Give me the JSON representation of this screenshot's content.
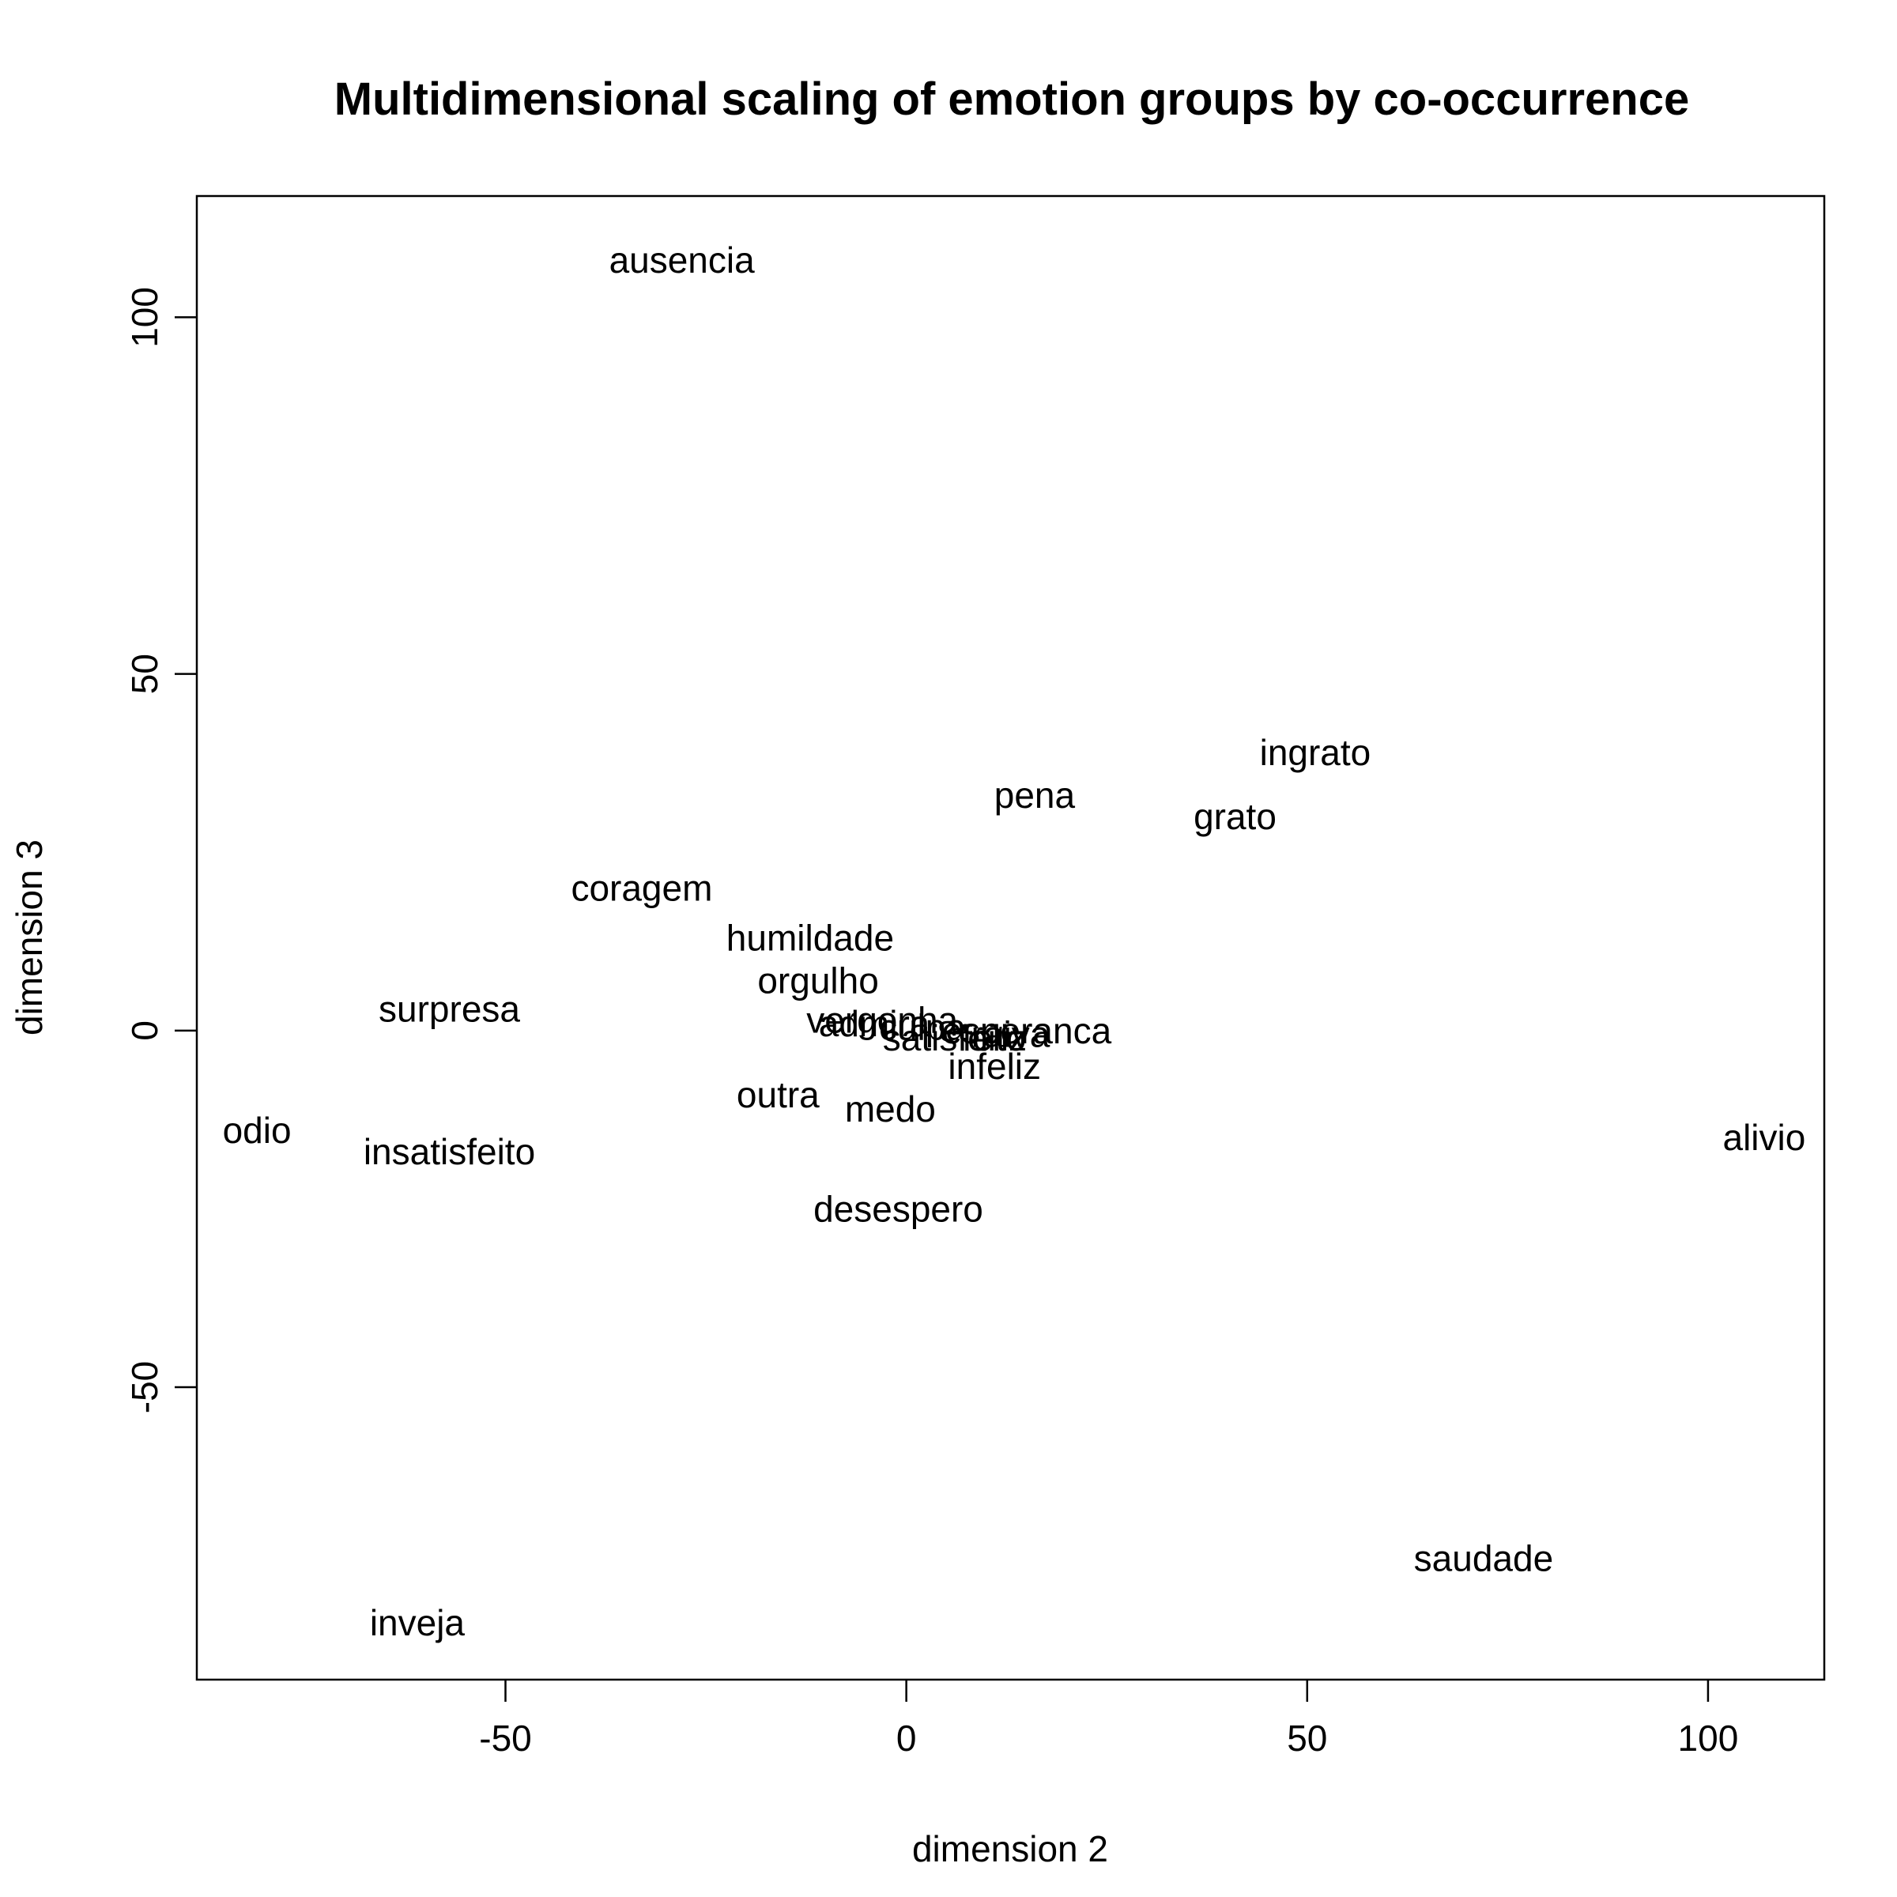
{
  "chart_data": {
    "type": "scatter",
    "title": "Multidimensional scaling of emotion groups by co-occurrence",
    "xlabel": "dimension 2",
    "ylabel": "dimension 3",
    "xlim": [
      -88.5,
      114.5
    ],
    "ylim": [
      -91,
      117
    ],
    "xticks": [
      -50,
      0,
      50,
      100
    ],
    "yticks": [
      -50,
      0,
      50,
      100
    ],
    "tick_labels_x": [
      "-50",
      "0",
      "50",
      "100"
    ],
    "tick_labels_y": [
      "-50",
      "0",
      "50",
      "100"
    ],
    "grid": false,
    "points": [
      {
        "label": "ausencia",
        "x": -28,
        "y": 108
      },
      {
        "label": "ingrato",
        "x": 51,
        "y": 39
      },
      {
        "label": "pena",
        "x": 16,
        "y": 33
      },
      {
        "label": "grato",
        "x": 41,
        "y": 30
      },
      {
        "label": "coragem",
        "x": -33,
        "y": 20
      },
      {
        "label": "humildade",
        "x": -12,
        "y": 13
      },
      {
        "label": "orgulho",
        "x": -11,
        "y": 7
      },
      {
        "label": "surpresa",
        "x": -57,
        "y": 3
      },
      {
        "label": "vergonha",
        "x": -3,
        "y": 1.5
      },
      {
        "label": "admira",
        "x": -4,
        "y": 1
      },
      {
        "label": "culpa",
        "x": 2,
        "y": 0.5
      },
      {
        "label": "esperanca",
        "x": 15,
        "y": 0
      },
      {
        "label": "satisfeito",
        "x": 6,
        "y": -1
      },
      {
        "label": "feliz",
        "x": 11,
        "y": -1
      },
      {
        "label": "raiva",
        "x": 13,
        "y": -0.5
      },
      {
        "label": "infeliz",
        "x": 11,
        "y": -5
      },
      {
        "label": "outra",
        "x": -16,
        "y": -9
      },
      {
        "label": "medo",
        "x": -2,
        "y": -11
      },
      {
        "label": "odio",
        "x": -81,
        "y": -14
      },
      {
        "label": "insatisfeito",
        "x": -57,
        "y": -17
      },
      {
        "label": "alivio",
        "x": 107,
        "y": -15
      },
      {
        "label": "desespero",
        "x": -1,
        "y": -25
      },
      {
        "label": "saudade",
        "x": 72,
        "y": -74
      },
      {
        "label": "inveja",
        "x": -61,
        "y": -83
      }
    ]
  }
}
